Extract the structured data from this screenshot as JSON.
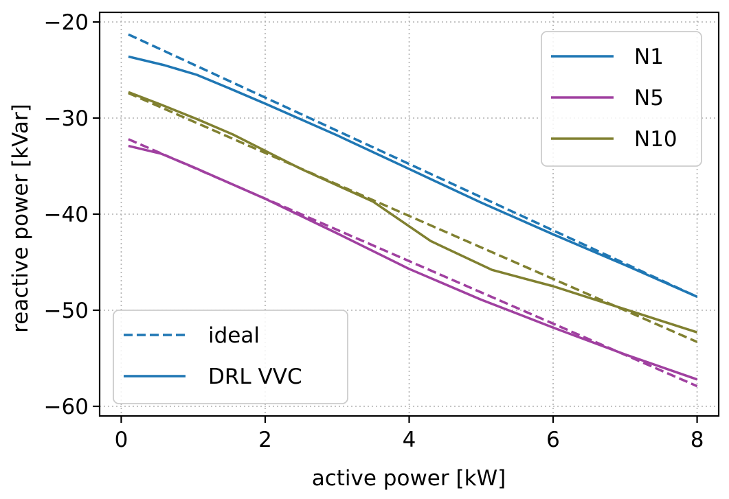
{
  "chart_data": {
    "type": "line",
    "title": "",
    "xlabel": "active power [kW]",
    "ylabel": "reactive power [kVar]",
    "xlim": [
      -0.3,
      8.3
    ],
    "ylim": [
      -61,
      -19
    ],
    "xticks": [
      0,
      2,
      4,
      6,
      8
    ],
    "yticks": [
      -20,
      -30,
      -40,
      -50,
      -60
    ],
    "xtick_labels": [
      "0",
      "2",
      "4",
      "6",
      "8"
    ],
    "ytick_labels": [
      "−20",
      "−30",
      "−40",
      "−50",
      "−60"
    ],
    "grid": true,
    "legends": {
      "nodes": {
        "placement": "top-right",
        "entries": [
          {
            "label": "N1",
            "color": "#1f77b4"
          },
          {
            "label": "N5",
            "color": "#a040a0"
          },
          {
            "label": "N10",
            "color": "#808030"
          }
        ]
      },
      "styles": {
        "placement": "bottom-left",
        "entries": [
          {
            "label": "ideal",
            "style": "dashed",
            "color": "#1f77b4"
          },
          {
            "label": "DRL VVC",
            "style": "solid",
            "color": "#1f77b4"
          }
        ]
      }
    },
    "series": [
      {
        "name": "N1 ideal",
        "node": "N1",
        "style": "dashed",
        "color": "#1f77b4",
        "x": [
          0.1,
          8.0
        ],
        "y": [
          -21.3,
          -48.6
        ]
      },
      {
        "name": "N1 DRL VVC",
        "node": "N1",
        "style": "solid",
        "color": "#1f77b4",
        "x": [
          0.1,
          0.6,
          1.05,
          1.5,
          2.0,
          3.0,
          4.0,
          5.0,
          6.0,
          7.0,
          8.0
        ],
        "y": [
          -23.6,
          -24.5,
          -25.5,
          -26.9,
          -28.5,
          -31.8,
          -35.3,
          -38.8,
          -42.1,
          -45.3,
          -48.6
        ]
      },
      {
        "name": "N5 ideal",
        "node": "N5",
        "style": "dashed",
        "color": "#a040a0",
        "x": [
          0.1,
          8.0
        ],
        "y": [
          -32.2,
          -57.9
        ]
      },
      {
        "name": "N5 DRL VVC",
        "node": "N5",
        "style": "solid",
        "color": "#a040a0",
        "x": [
          0.1,
          0.55,
          1.0,
          2.0,
          3.0,
          4.0,
          5.0,
          6.0,
          7.0,
          8.0
        ],
        "y": [
          -32.9,
          -33.7,
          -35.1,
          -38.4,
          -42.0,
          -45.7,
          -48.9,
          -51.8,
          -54.6,
          -57.2
        ]
      },
      {
        "name": "N10 ideal",
        "node": "N10",
        "style": "dashed",
        "color": "#808030",
        "x": [
          0.1,
          8.0
        ],
        "y": [
          -27.4,
          -53.3
        ]
      },
      {
        "name": "N10 DRL VVC",
        "node": "N10",
        "style": "solid",
        "color": "#808030",
        "x": [
          0.1,
          0.55,
          1.05,
          1.55,
          2.5,
          3.5,
          4.3,
          5.15,
          6.0,
          7.0,
          8.0
        ],
        "y": [
          -27.3,
          -28.6,
          -30.1,
          -31.7,
          -35.3,
          -38.7,
          -42.8,
          -45.8,
          -47.5,
          -49.9,
          -52.3
        ]
      }
    ]
  }
}
